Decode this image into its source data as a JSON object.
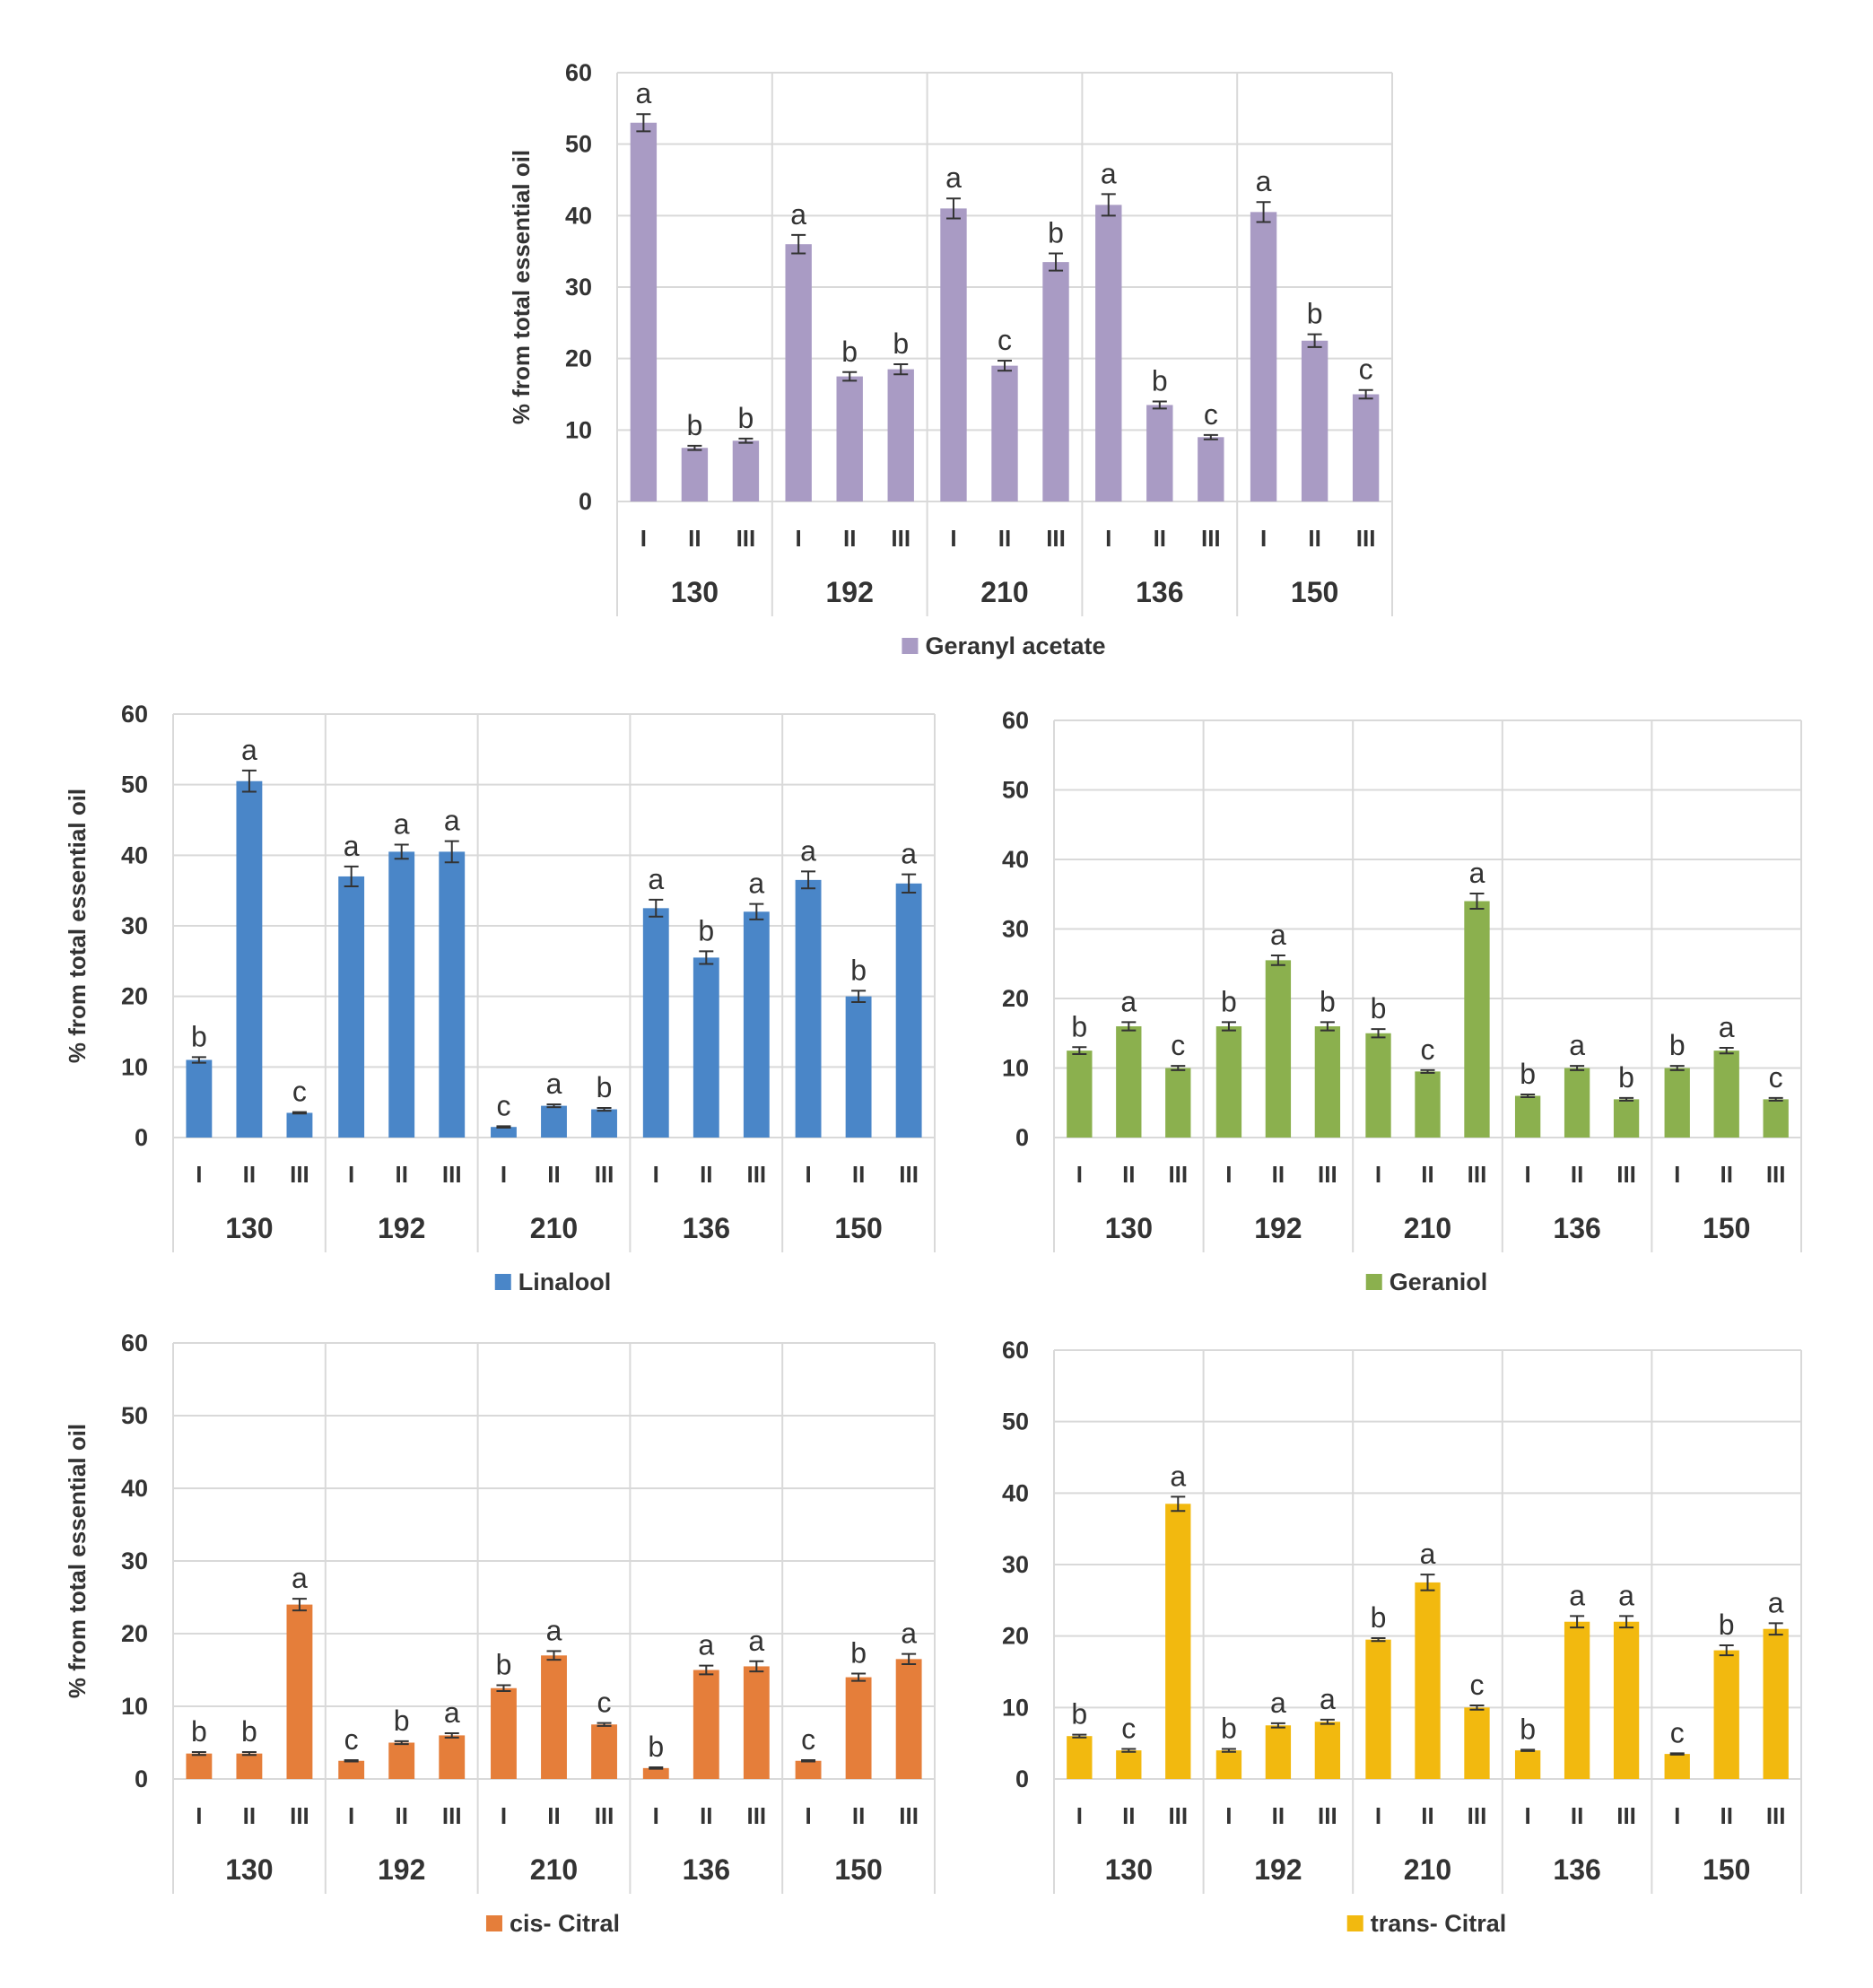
{
  "chart_data": [
    {
      "type": "bar",
      "groups": [
        "130",
        "192",
        "210",
        "136",
        "150"
      ],
      "subgroups": [
        "I",
        "II",
        "III"
      ],
      "ylabel": "% from total essential oil",
      "ylim": [
        0,
        60
      ],
      "yticks": [
        0,
        10,
        20,
        30,
        40,
        50,
        60
      ],
      "color": "#a99bc4",
      "grid": true,
      "legend_position": "bottom-center",
      "series": [
        {
          "name": "Geranyl acetate",
          "values": [
            [
              53,
              7.5,
              8.5
            ],
            [
              36,
              17.5,
              18.5
            ],
            [
              41,
              19,
              33.5
            ],
            [
              41.5,
              13.5,
              9
            ],
            [
              40.5,
              22.5,
              15
            ]
          ],
          "errors": [
            [
              1.2,
              0.3,
              0.3
            ],
            [
              1.3,
              0.6,
              0.7
            ],
            [
              1.4,
              0.7,
              1.2
            ],
            [
              1.5,
              0.5,
              0.3
            ],
            [
              1.4,
              0.9,
              0.6
            ]
          ],
          "letters": [
            [
              "a",
              "b",
              "b"
            ],
            [
              "a",
              "b",
              "b"
            ],
            [
              "a",
              "c",
              "b"
            ],
            [
              "a",
              "b",
              "c"
            ],
            [
              "a",
              "b",
              "c"
            ]
          ]
        }
      ]
    },
    {
      "type": "bar",
      "groups": [
        "130",
        "192",
        "210",
        "136",
        "150"
      ],
      "subgroups": [
        "I",
        "II",
        "III"
      ],
      "ylabel": "% from total essential oil",
      "ylim": [
        0,
        60
      ],
      "yticks": [
        0,
        10,
        20,
        30,
        40,
        50,
        60
      ],
      "color": "#4a86c8",
      "grid": true,
      "legend_position": "bottom-center",
      "series": [
        {
          "name": "Linalool",
          "values": [
            [
              11,
              50.5,
              3.5
            ],
            [
              37,
              40.5,
              40.5
            ],
            [
              1.5,
              4.5,
              4
            ],
            [
              32.5,
              25.5,
              32
            ],
            [
              36.5,
              20,
              36
            ]
          ],
          "errors": [
            [
              0.4,
              1.5,
              0.1
            ],
            [
              1.4,
              1.0,
              1.5
            ],
            [
              0.1,
              0.2,
              0.2
            ],
            [
              1.2,
              0.9,
              1.1
            ],
            [
              1.2,
              0.8,
              1.3
            ]
          ],
          "letters": [
            [
              "b",
              "a",
              "c"
            ],
            [
              "a",
              "a",
              "a"
            ],
            [
              "c",
              "a",
              "b"
            ],
            [
              "a",
              "b",
              "a"
            ],
            [
              "a",
              "b",
              "a"
            ]
          ]
        }
      ]
    },
    {
      "type": "bar",
      "groups": [
        "130",
        "192",
        "210",
        "136",
        "150"
      ],
      "subgroups": [
        "I",
        "II",
        "III"
      ],
      "ylabel": "",
      "ylim": [
        0,
        60
      ],
      "yticks": [
        0,
        10,
        20,
        30,
        40,
        50,
        60
      ],
      "color": "#8bb04e",
      "grid": true,
      "legend_position": "bottom-center",
      "series": [
        {
          "name": "Geraniol",
          "values": [
            [
              12.5,
              16,
              10
            ],
            [
              16,
              25.5,
              16
            ],
            [
              15,
              9.5,
              34
            ],
            [
              6,
              10,
              5.5
            ],
            [
              10,
              12.5,
              5.5
            ]
          ],
          "errors": [
            [
              0.5,
              0.6,
              0.3
            ],
            [
              0.6,
              0.7,
              0.6
            ],
            [
              0.6,
              0.2,
              1.1
            ],
            [
              0.2,
              0.3,
              0.2
            ],
            [
              0.3,
              0.4,
              0.2
            ]
          ],
          "letters": [
            [
              "b",
              "a",
              "c"
            ],
            [
              "b",
              "a",
              "b"
            ],
            [
              "b",
              "c",
              "a"
            ],
            [
              "b",
              "a",
              "b"
            ],
            [
              "b",
              "a",
              "c"
            ]
          ]
        }
      ]
    },
    {
      "type": "bar",
      "groups": [
        "130",
        "192",
        "210",
        "136",
        "150"
      ],
      "subgroups": [
        "I",
        "II",
        "III"
      ],
      "ylabel": "% from total essential oil",
      "ylim": [
        0,
        60
      ],
      "yticks": [
        0,
        10,
        20,
        30,
        40,
        50,
        60
      ],
      "color": "#e57e3a",
      "grid": true,
      "legend_position": "bottom-center",
      "series": [
        {
          "name": "cis- Citral",
          "values": [
            [
              3.5,
              3.5,
              24
            ],
            [
              2.5,
              5,
              6
            ],
            [
              12.5,
              17,
              7.5
            ],
            [
              1.5,
              15,
              15.5
            ],
            [
              2.5,
              14,
              16.5
            ]
          ],
          "errors": [
            [
              0.2,
              0.2,
              0.8
            ],
            [
              0.1,
              0.2,
              0.3
            ],
            [
              0.4,
              0.6,
              0.2
            ],
            [
              0.1,
              0.6,
              0.7
            ],
            [
              0.1,
              0.5,
              0.7
            ]
          ],
          "letters": [
            [
              "b",
              "b",
              "a"
            ],
            [
              "c",
              "b",
              "a"
            ],
            [
              "b",
              "a",
              "c"
            ],
            [
              "b",
              "a",
              "a"
            ],
            [
              "c",
              "b",
              "a"
            ]
          ]
        }
      ]
    },
    {
      "type": "bar",
      "groups": [
        "130",
        "192",
        "210",
        "136",
        "150"
      ],
      "subgroups": [
        "I",
        "II",
        "III"
      ],
      "ylabel": "",
      "ylim": [
        0,
        60
      ],
      "yticks": [
        0,
        10,
        20,
        30,
        40,
        50,
        60
      ],
      "color": "#f2b90f",
      "grid": true,
      "legend_position": "bottom-center",
      "series": [
        {
          "name": "trans- Citral",
          "values": [
            [
              6,
              4,
              38.5
            ],
            [
              4,
              7.5,
              8
            ],
            [
              19.5,
              27.5,
              10
            ],
            [
              4,
              22,
              22
            ],
            [
              3.5,
              18,
              21
            ]
          ],
          "errors": [
            [
              0.2,
              0.2,
              1.0
            ],
            [
              0.2,
              0.3,
              0.3
            ],
            [
              0.2,
              1.1,
              0.3
            ],
            [
              0.1,
              0.8,
              0.8
            ],
            [
              0.1,
              0.7,
              0.8
            ]
          ],
          "letters": [
            [
              "b",
              "c",
              "a"
            ],
            [
              "b",
              "a",
              "a"
            ],
            [
              "b",
              "a",
              "c"
            ],
            [
              "b",
              "a",
              "a"
            ],
            [
              "c",
              "b",
              "a"
            ]
          ]
        }
      ]
    }
  ]
}
